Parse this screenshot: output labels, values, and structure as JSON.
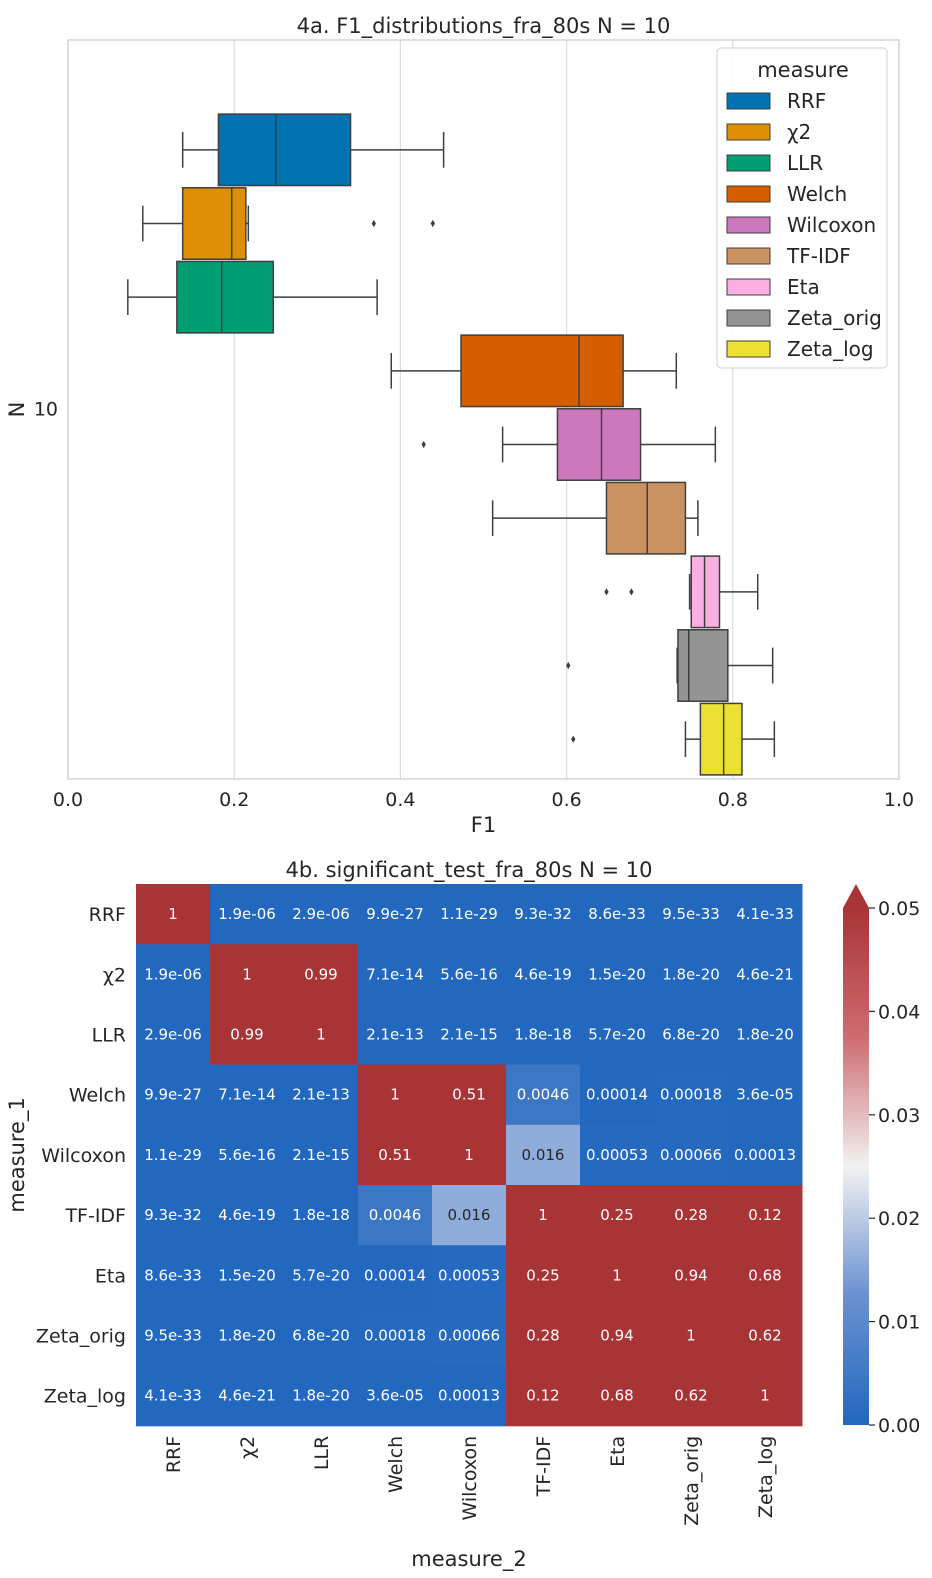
{
  "chart_data": [
    {
      "type": "box",
      "title": "4a. F1_distributions_fra_80s N = 10",
      "xlabel": "F1",
      "ylabel": "N",
      "y_category": "10",
      "xlim": [
        0.0,
        1.0
      ],
      "xticks": [
        "0.0",
        "0.2",
        "0.4",
        "0.6",
        "0.8",
        "1.0"
      ],
      "grid": true,
      "legend_title": "measure",
      "legend_position": "top-right",
      "series": [
        {
          "name": "RRF",
          "color": "#0173b2",
          "whisker_low": 0.138,
          "q1": 0.181,
          "median": 0.25,
          "q3": 0.34,
          "whisker_high": 0.452,
          "outliers": []
        },
        {
          "name": "χ2",
          "color": "#de8f05",
          "whisker_low": 0.09,
          "q1": 0.138,
          "median": 0.197,
          "q3": 0.214,
          "whisker_high": 0.217,
          "outliers": [
            0.368,
            0.439
          ]
        },
        {
          "name": "LLR",
          "color": "#029e73",
          "whisker_low": 0.072,
          "q1": 0.131,
          "median": 0.185,
          "q3": 0.247,
          "whisker_high": 0.372,
          "outliers": []
        },
        {
          "name": "Welch",
          "color": "#d55e00",
          "whisker_low": 0.389,
          "q1": 0.473,
          "median": 0.615,
          "q3": 0.668,
          "whisker_high": 0.732,
          "outliers": []
        },
        {
          "name": "Wilcoxon",
          "color": "#cc78bc",
          "whisker_low": 0.523,
          "q1": 0.589,
          "median": 0.642,
          "q3": 0.689,
          "whisker_high": 0.779,
          "outliers": [
            0.428
          ]
        },
        {
          "name": "TF-IDF",
          "color": "#ca9161",
          "whisker_low": 0.511,
          "q1": 0.648,
          "median": 0.697,
          "q3": 0.743,
          "whisker_high": 0.758,
          "outliers": []
        },
        {
          "name": "Eta",
          "color": "#fbafe4",
          "whisker_low": 0.748,
          "q1": 0.75,
          "median": 0.766,
          "q3": 0.784,
          "whisker_high": 0.83,
          "outliers": [
            0.648,
            0.678
          ]
        },
        {
          "name": "Zeta_orig",
          "color": "#949494",
          "whisker_low": 0.733,
          "q1": 0.734,
          "median": 0.747,
          "q3": 0.794,
          "whisker_high": 0.848,
          "outliers": [
            0.602
          ]
        },
        {
          "name": "Zeta_log",
          "color": "#ece133",
          "whisker_low": 0.743,
          "q1": 0.761,
          "median": 0.789,
          "q3": 0.811,
          "whisker_high": 0.85,
          "outliers": [
            0.608
          ]
        }
      ]
    },
    {
      "type": "heatmap",
      "title": "4b. significant_test_fra_80s N = 10",
      "xlabel": "measure_2",
      "ylabel": "measure_1",
      "labels": [
        "RRF",
        "χ2",
        "LLR",
        "Welch",
        "Wilcoxon",
        "TF-IDF",
        "Eta",
        "Zeta_orig",
        "Zeta_log"
      ],
      "values": [
        [
          1,
          1.9e-06,
          2.9e-06,
          9.9e-27,
          1.1e-29,
          9.3e-32,
          8.6e-33,
          9.5e-33,
          4.1e-33
        ],
        [
          1.9e-06,
          1,
          0.99,
          7.1e-14,
          5.6e-16,
          4.6e-19,
          1.5e-20,
          1.8e-20,
          4.6e-21
        ],
        [
          2.9e-06,
          0.99,
          1,
          2.1e-13,
          2.1e-15,
          1.8e-18,
          5.7e-20,
          6.8e-20,
          1.8e-20
        ],
        [
          9.9e-27,
          7.1e-14,
          2.1e-13,
          1,
          0.51,
          0.0046,
          0.00014,
          0.00018,
          3.6e-05
        ],
        [
          1.1e-29,
          5.6e-16,
          2.1e-15,
          0.51,
          1,
          0.016,
          0.00053,
          0.00066,
          0.00013
        ],
        [
          9.3e-32,
          4.6e-19,
          1.8e-18,
          0.0046,
          0.016,
          1,
          0.25,
          0.28,
          0.12
        ],
        [
          8.6e-33,
          1.5e-20,
          5.7e-20,
          0.00014,
          0.00053,
          0.25,
          1,
          0.94,
          0.68
        ],
        [
          9.5e-33,
          1.8e-20,
          6.8e-20,
          0.00018,
          0.00066,
          0.28,
          0.94,
          1,
          0.62
        ],
        [
          4.1e-33,
          4.6e-21,
          1.8e-20,
          3.6e-05,
          0.00013,
          0.12,
          0.68,
          0.62,
          1
        ]
      ],
      "annotations": [
        [
          "1",
          "1.9e-06",
          "2.9e-06",
          "9.9e-27",
          "1.1e-29",
          "9.3e-32",
          "8.6e-33",
          "9.5e-33",
          "4.1e-33"
        ],
        [
          "1.9e-06",
          "1",
          "0.99",
          "7.1e-14",
          "5.6e-16",
          "4.6e-19",
          "1.5e-20",
          "1.8e-20",
          "4.6e-21"
        ],
        [
          "2.9e-06",
          "0.99",
          "1",
          "2.1e-13",
          "2.1e-15",
          "1.8e-18",
          "5.7e-20",
          "6.8e-20",
          "1.8e-20"
        ],
        [
          "9.9e-27",
          "7.1e-14",
          "2.1e-13",
          "1",
          "0.51",
          "0.0046",
          "0.00014",
          "0.00018",
          "3.6e-05"
        ],
        [
          "1.1e-29",
          "5.6e-16",
          "2.1e-15",
          "0.51",
          "1",
          "0.016",
          "0.00053",
          "0.00066",
          "0.00013"
        ],
        [
          "9.3e-32",
          "4.6e-19",
          "1.8e-18",
          "0.0046",
          "0.016",
          "1",
          "0.25",
          "0.28",
          "0.12"
        ],
        [
          "8.6e-33",
          "1.5e-20",
          "5.7e-20",
          "0.00014",
          "0.00053",
          "0.25",
          "1",
          "0.94",
          "0.68"
        ],
        [
          "9.5e-33",
          "1.8e-20",
          "6.8e-20",
          "0.00018",
          "0.00066",
          "0.28",
          "0.94",
          "1",
          "0.62"
        ],
        [
          "4.1e-33",
          "4.6e-21",
          "1.8e-20",
          "3.6e-05",
          "0.00013",
          "0.12",
          "0.68",
          "0.62",
          "1"
        ]
      ],
      "vmin": 0.0,
      "vmax": 0.05,
      "colormap": "vlag",
      "colorbar_ticks": [
        "0.00",
        "0.01",
        "0.02",
        "0.03",
        "0.04",
        "0.05"
      ],
      "colorbar_extend": "max"
    }
  ]
}
